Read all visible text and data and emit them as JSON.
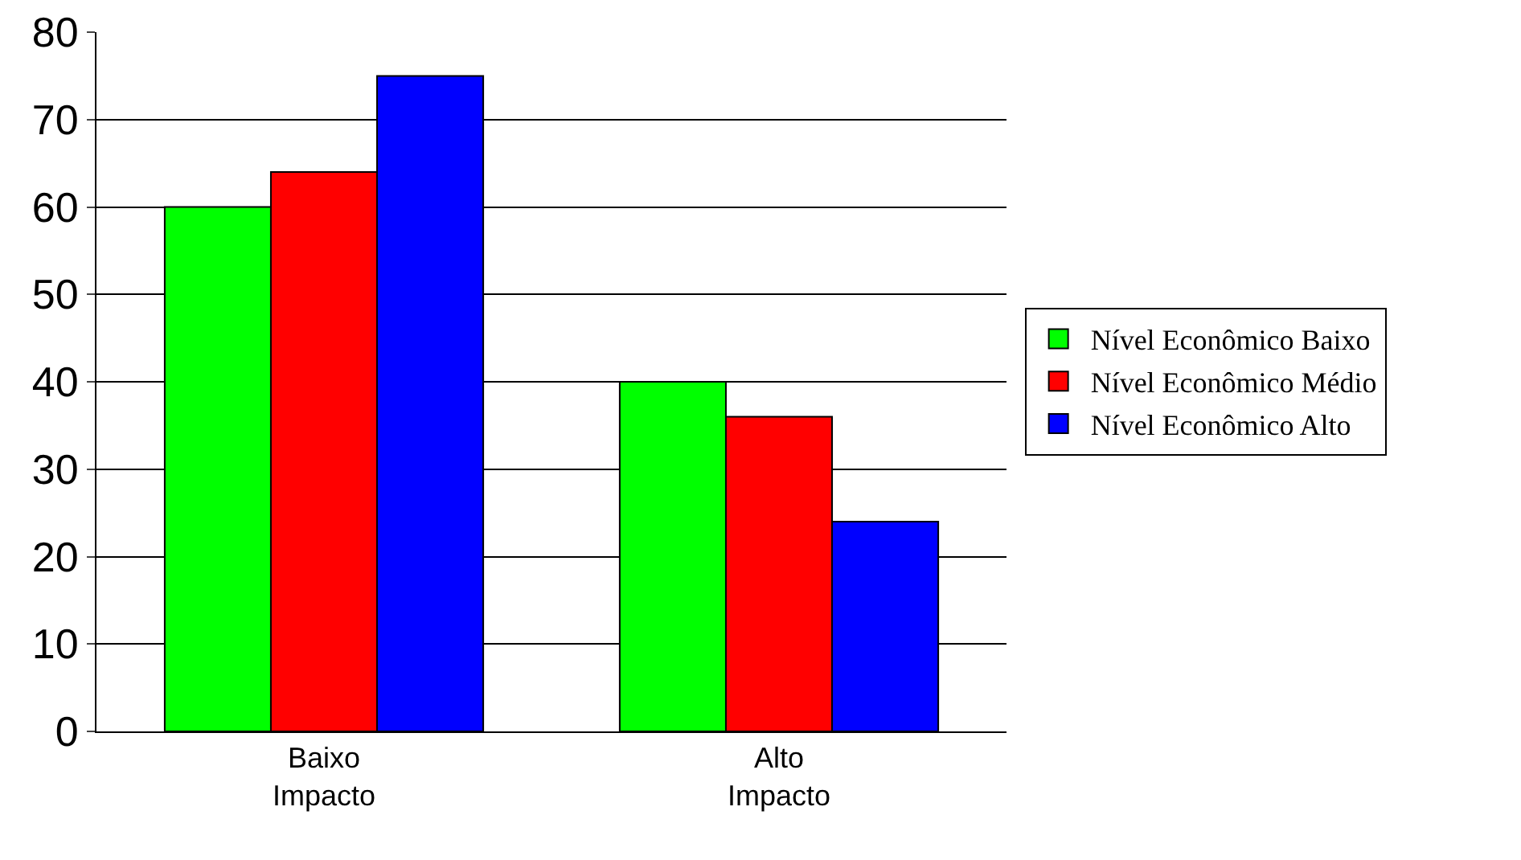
{
  "chart_data": {
    "type": "bar",
    "categories": [
      "Baixo\nImpacto",
      "Alto\nImpacto"
    ],
    "series": [
      {
        "name": "Nível Econômico Baixo",
        "color": "#00ff00",
        "values": [
          60,
          40
        ]
      },
      {
        "name": "Nível Econômico Médio",
        "color": "#ff0000",
        "values": [
          64,
          36
        ]
      },
      {
        "name": "Nível Econômico Alto",
        "color": "#0000ff",
        "values": [
          75,
          24
        ]
      }
    ],
    "ylim": [
      0,
      80
    ],
    "yticks": [
      0,
      10,
      20,
      30,
      40,
      50,
      60,
      70,
      80
    ],
    "grid": "y",
    "legend": "right"
  }
}
